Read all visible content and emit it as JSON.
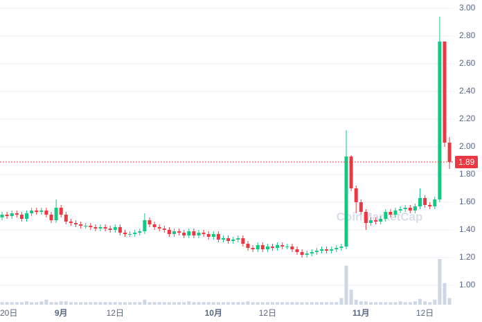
{
  "chart_data": {
    "type": "candlestick",
    "watermark": "CoinMarketCap",
    "categories": [
      null,
      "20日",
      null,
      null,
      null,
      null,
      null,
      null,
      null,
      null,
      null,
      null,
      "9月",
      null,
      null,
      null,
      null,
      null,
      null,
      null,
      null,
      null,
      null,
      "12日",
      null,
      null,
      null,
      null,
      null,
      null,
      null,
      null,
      null,
      null,
      null,
      null,
      null,
      null,
      null,
      null,
      null,
      null,
      null,
      "10月",
      null,
      null,
      null,
      null,
      null,
      null,
      null,
      null,
      null,
      null,
      "12日",
      null,
      null,
      null,
      null,
      null,
      null,
      null,
      null,
      null,
      null,
      null,
      null,
      null,
      null,
      null,
      null,
      null,
      null,
      "11月",
      null,
      null,
      null,
      null,
      null,
      null,
      null,
      null,
      null,
      null,
      null,
      null,
      "12日",
      null,
      null,
      null,
      null,
      null
    ],
    "open": [
      1.49,
      1.51,
      1.5,
      1.52,
      1.51,
      1.48,
      1.52,
      1.54,
      1.53,
      1.54,
      1.51,
      1.47,
      1.56,
      1.51,
      1.46,
      1.45,
      1.44,
      1.43,
      1.43,
      1.42,
      1.41,
      1.42,
      1.41,
      1.4,
      1.42,
      1.38,
      1.37,
      1.37,
      1.38,
      1.39,
      1.47,
      1.44,
      1.42,
      1.41,
      1.4,
      1.37,
      1.39,
      1.38,
      1.36,
      1.39,
      1.36,
      1.38,
      1.37,
      1.35,
      1.37,
      1.33,
      1.34,
      1.32,
      1.33,
      1.34,
      1.3,
      1.27,
      1.26,
      1.29,
      1.26,
      1.28,
      1.27,
      1.29,
      1.28,
      1.28,
      1.26,
      1.24,
      1.22,
      1.23,
      1.24,
      1.25,
      1.26,
      1.25,
      1.26,
      1.27,
      1.28,
      1.93,
      1.7,
      1.6,
      1.53,
      1.45,
      1.47,
      1.46,
      1.48,
      1.53,
      1.51,
      1.54,
      1.55,
      1.56,
      1.54,
      1.57,
      1.63,
      1.58,
      1.57,
      1.62,
      2.76,
      2.03
    ],
    "high": [
      1.53,
      1.53,
      1.54,
      1.54,
      1.53,
      1.54,
      1.56,
      1.56,
      1.56,
      1.56,
      1.53,
      1.62,
      1.58,
      1.53,
      1.48,
      1.47,
      1.46,
      1.45,
      1.45,
      1.44,
      1.44,
      1.44,
      1.43,
      1.44,
      1.44,
      1.4,
      1.39,
      1.4,
      1.41,
      1.52,
      1.49,
      1.46,
      1.44,
      1.43,
      1.42,
      1.41,
      1.41,
      1.4,
      1.41,
      1.41,
      1.4,
      1.4,
      1.39,
      1.39,
      1.39,
      1.36,
      1.36,
      1.35,
      1.36,
      1.36,
      1.32,
      1.29,
      1.31,
      1.31,
      1.3,
      1.3,
      1.31,
      1.31,
      1.3,
      1.3,
      1.28,
      1.26,
      1.25,
      1.26,
      1.27,
      1.28,
      1.28,
      1.28,
      1.29,
      1.3,
      2.12,
      1.94,
      1.72,
      1.62,
      1.55,
      1.49,
      1.49,
      1.5,
      1.55,
      1.55,
      1.56,
      1.57,
      1.58,
      1.58,
      1.59,
      1.7,
      1.65,
      1.6,
      1.64,
      2.94,
      2.76,
      2.07
    ],
    "low": [
      1.47,
      1.48,
      1.48,
      1.49,
      1.46,
      1.46,
      1.5,
      1.51,
      1.51,
      1.49,
      1.45,
      1.45,
      1.49,
      1.44,
      1.43,
      1.42,
      1.41,
      1.41,
      1.4,
      1.39,
      1.39,
      1.39,
      1.38,
      1.38,
      1.36,
      1.35,
      1.35,
      1.35,
      1.36,
      1.37,
      1.42,
      1.4,
      1.39,
      1.38,
      1.35,
      1.35,
      1.36,
      1.34,
      1.34,
      1.34,
      1.34,
      1.35,
      1.33,
      1.33,
      1.31,
      1.31,
      1.3,
      1.3,
      1.31,
      1.28,
      1.25,
      1.24,
      1.24,
      1.24,
      1.24,
      1.25,
      1.25,
      1.26,
      1.26,
      1.24,
      1.22,
      1.2,
      1.2,
      1.21,
      1.22,
      1.23,
      1.23,
      1.23,
      1.24,
      1.25,
      1.26,
      1.68,
      1.52,
      1.51,
      1.4,
      1.43,
      1.44,
      1.44,
      1.46,
      1.49,
      1.49,
      1.52,
      1.53,
      1.52,
      1.52,
      1.55,
      1.56,
      1.55,
      1.55,
      1.6,
      2.0,
      1.84
    ],
    "close": [
      1.51,
      1.5,
      1.52,
      1.51,
      1.48,
      1.52,
      1.54,
      1.53,
      1.54,
      1.51,
      1.47,
      1.56,
      1.51,
      1.46,
      1.45,
      1.44,
      1.43,
      1.43,
      1.42,
      1.41,
      1.42,
      1.41,
      1.4,
      1.42,
      1.38,
      1.37,
      1.37,
      1.38,
      1.39,
      1.47,
      1.44,
      1.42,
      1.41,
      1.4,
      1.37,
      1.39,
      1.38,
      1.36,
      1.39,
      1.36,
      1.38,
      1.37,
      1.35,
      1.37,
      1.33,
      1.34,
      1.32,
      1.33,
      1.34,
      1.3,
      1.27,
      1.26,
      1.29,
      1.26,
      1.28,
      1.27,
      1.29,
      1.28,
      1.28,
      1.26,
      1.24,
      1.22,
      1.23,
      1.24,
      1.25,
      1.26,
      1.25,
      1.26,
      1.27,
      1.28,
      1.93,
      1.7,
      1.6,
      1.53,
      1.45,
      1.47,
      1.46,
      1.48,
      1.53,
      1.51,
      1.54,
      1.55,
      1.56,
      1.54,
      1.57,
      1.63,
      1.58,
      1.57,
      1.62,
      2.76,
      2.03,
      1.89
    ],
    "volume": [
      3,
      3,
      3,
      3,
      3,
      4,
      3,
      3,
      4,
      6,
      3,
      3,
      4,
      4,
      3,
      3,
      3,
      3,
      3,
      3,
      3,
      3,
      3,
      3,
      3,
      3,
      3,
      3,
      3,
      6,
      3,
      3,
      3,
      3,
      3,
      3,
      3,
      3,
      4,
      3,
      3,
      3,
      3,
      3,
      3,
      3,
      3,
      3,
      3,
      3,
      4,
      3,
      3,
      3,
      3,
      3,
      3,
      3,
      3,
      3,
      3,
      3,
      3,
      3,
      3,
      3,
      3,
      3,
      3,
      8,
      47,
      18,
      6,
      4,
      4,
      3,
      3,
      3,
      3,
      3,
      3,
      4,
      3,
      3,
      4,
      7,
      4,
      3,
      6,
      55,
      26,
      8
    ],
    "up_color": "#16c784",
    "down_color": "#ea3943",
    "volume_color": "#cfd6e4",
    "last_price": 1.89,
    "last_price_label": "1.89",
    "ylim": [
      0.86,
      3.0
    ],
    "yticks": [
      {
        "value": 1.0,
        "label": "1.00"
      },
      {
        "value": 1.2,
        "label": "1.20"
      },
      {
        "value": 1.4,
        "label": "1.40"
      },
      {
        "value": 1.6,
        "label": "1.60"
      },
      {
        "value": 1.8,
        "label": "1.80"
      },
      {
        "value": 2.0,
        "label": "2.00"
      },
      {
        "value": 2.2,
        "label": "2.20"
      },
      {
        "value": 2.4,
        "label": "2.40"
      },
      {
        "value": 2.6,
        "label": "2.60"
      },
      {
        "value": 2.8,
        "label": "2.80"
      },
      {
        "value": 3.0,
        "label": "3.00"
      }
    ],
    "grid": true
  }
}
